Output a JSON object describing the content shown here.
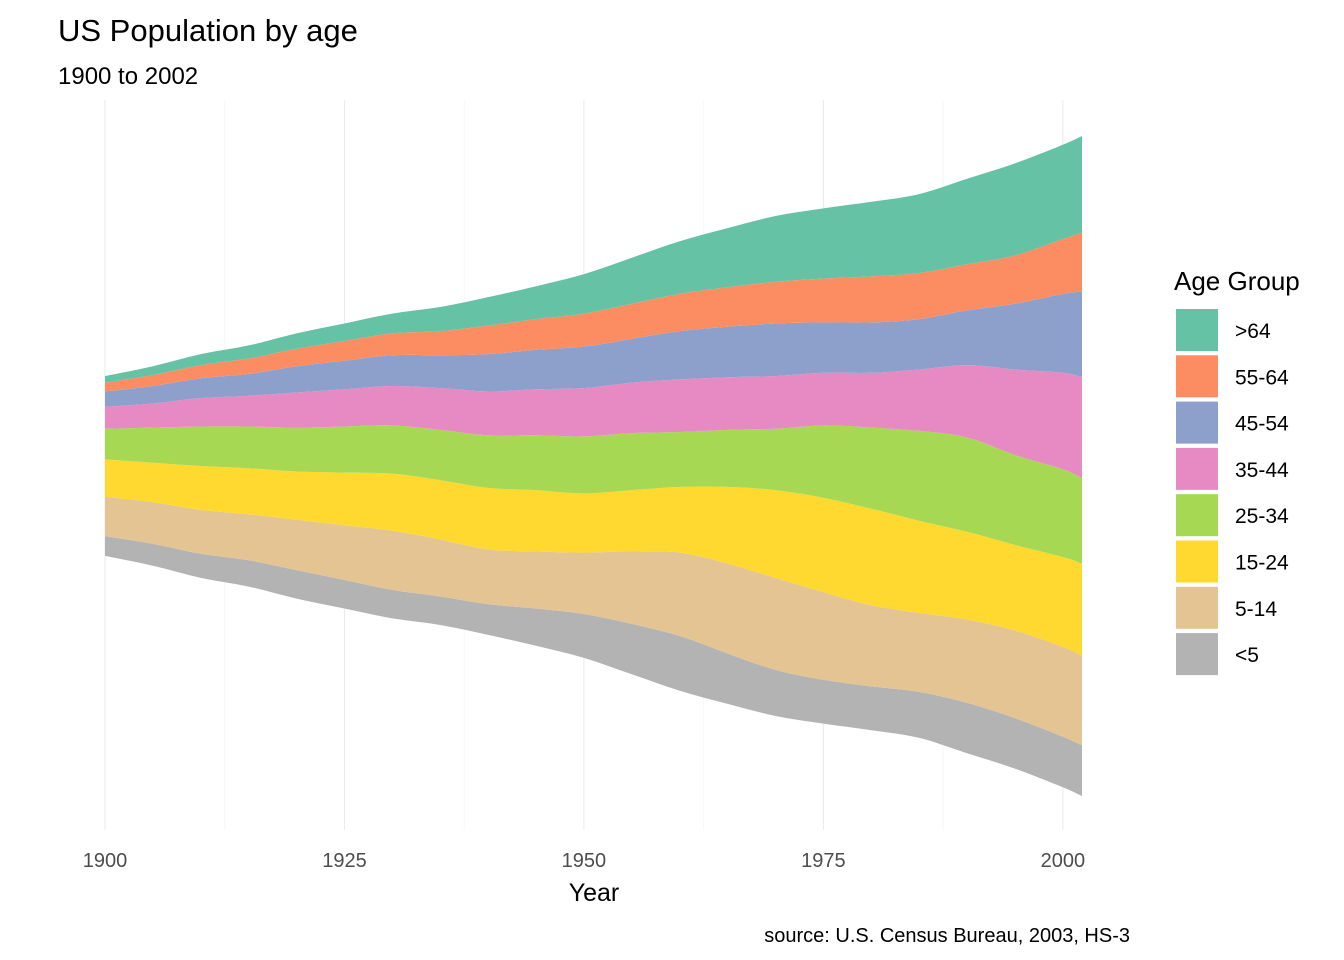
{
  "chart_data": {
    "type": "area",
    "variant": "streamgraph",
    "title": "US Population by age",
    "subtitle": "1900 to 2002",
    "xlabel": "Year",
    "ylabel": "",
    "caption": "source: U.S. Census Bureau, 2003, HS-3",
    "xlim": [
      1900,
      2002
    ],
    "x_ticks": [
      "1900",
      "1925",
      "1950",
      "1975",
      "2000"
    ],
    "x_tick_values": [
      1900,
      1925,
      1950,
      1975,
      2000
    ],
    "y_axis_shown": false,
    "grid": "vertical",
    "legend": {
      "title": "Age Group",
      "position": "right"
    },
    "x": [
      1900,
      1905,
      1910,
      1915,
      1920,
      1925,
      1930,
      1935,
      1940,
      1945,
      1950,
      1955,
      1960,
      1965,
      1970,
      1975,
      1980,
      1985,
      1990,
      1995,
      2000,
      2002
    ],
    "series": [
      {
        "name": "<5",
        "color": "#b3b3b3",
        "values": [
          0.9,
          1.0,
          1.1,
          1.2,
          1.3,
          1.3,
          1.3,
          1.3,
          1.4,
          1.7,
          2.0,
          2.3,
          2.5,
          2.3,
          2.1,
          2.0,
          2.0,
          2.1,
          2.3,
          2.3,
          2.3,
          2.3
        ]
      },
      {
        "name": "5-14",
        "color": "#e5c494",
        "values": [
          1.8,
          1.9,
          2.0,
          2.1,
          2.3,
          2.5,
          2.7,
          2.6,
          2.5,
          2.6,
          2.8,
          3.3,
          3.8,
          4.1,
          4.2,
          4.0,
          3.7,
          3.6,
          3.8,
          4.0,
          4.1,
          4.1
        ]
      },
      {
        "name": "15-24",
        "color": "#ffd92f",
        "values": [
          1.7,
          1.8,
          2.0,
          2.1,
          2.2,
          2.4,
          2.6,
          2.7,
          2.8,
          2.8,
          2.7,
          2.8,
          3.0,
          3.5,
          4.0,
          4.3,
          4.4,
          4.2,
          4.0,
          3.9,
          4.1,
          4.2
        ]
      },
      {
        "name": "25-34",
        "color": "#a6d854",
        "values": [
          1.4,
          1.6,
          1.8,
          1.9,
          2.0,
          2.1,
          2.2,
          2.3,
          2.4,
          2.5,
          2.6,
          2.6,
          2.5,
          2.6,
          2.8,
          3.3,
          3.7,
          4.1,
          4.3,
          4.1,
          4.0,
          3.9
        ]
      },
      {
        "name": "35-44",
        "color": "#e78ac3",
        "values": [
          1.0,
          1.1,
          1.3,
          1.4,
          1.6,
          1.7,
          1.8,
          1.9,
          2.0,
          2.1,
          2.2,
          2.3,
          2.4,
          2.4,
          2.4,
          2.4,
          2.5,
          2.8,
          3.3,
          3.9,
          4.4,
          4.6
        ]
      },
      {
        "name": "45-54",
        "color": "#8da0cb",
        "values": [
          0.7,
          0.8,
          0.9,
          1.0,
          1.2,
          1.3,
          1.4,
          1.5,
          1.7,
          1.8,
          1.9,
          2.0,
          2.2,
          2.3,
          2.4,
          2.3,
          2.3,
          2.3,
          2.5,
          3.0,
          3.6,
          3.9
        ]
      },
      {
        "name": "55-64",
        "color": "#fc8d62",
        "values": [
          0.4,
          0.5,
          0.6,
          0.7,
          0.8,
          0.9,
          1.0,
          1.1,
          1.3,
          1.4,
          1.5,
          1.6,
          1.7,
          1.8,
          1.9,
          2.0,
          2.1,
          2.1,
          2.1,
          2.2,
          2.5,
          2.7
        ]
      },
      {
        "name": ">64",
        "color": "#66c2a5",
        "values": [
          0.3,
          0.4,
          0.5,
          0.6,
          0.7,
          0.8,
          0.9,
          1.1,
          1.3,
          1.5,
          1.8,
          2.1,
          2.4,
          2.7,
          3.0,
          3.2,
          3.4,
          3.6,
          3.9,
          4.2,
          4.3,
          4.4
        ]
      }
    ]
  }
}
